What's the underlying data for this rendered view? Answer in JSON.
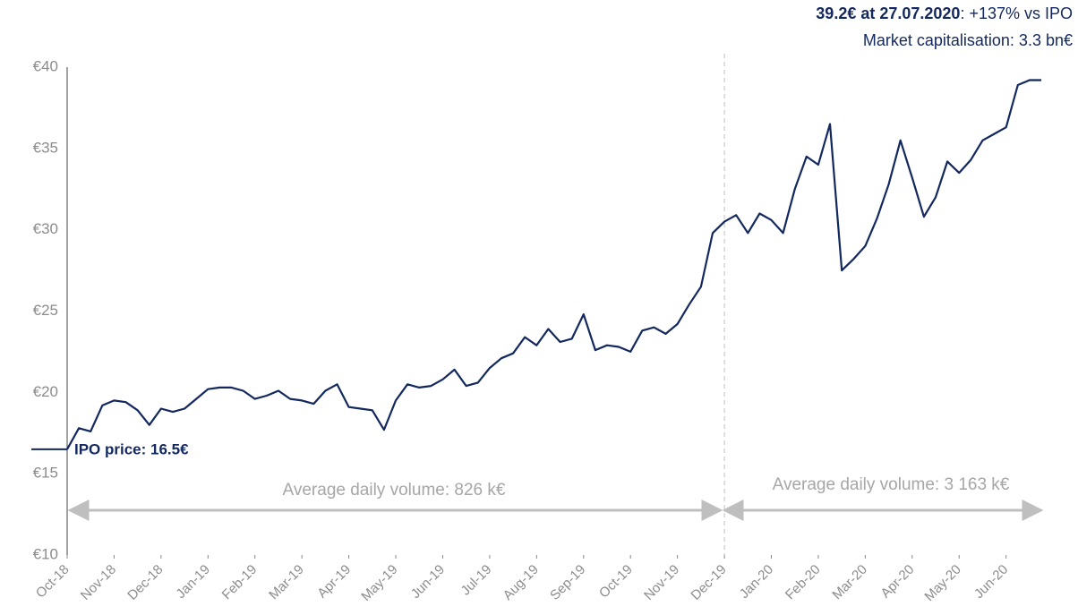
{
  "chart_data": {
    "type": "line",
    "color": "#12285f",
    "price_note": {
      "highlight": "39.2€ at 27.07.2020",
      "detail": ": +137% vs IPO"
    },
    "market_cap_note": "Market capitalisation: 3.3 bn€",
    "ipo_label": "IPO price: 16.5€",
    "ipo_price": 16.5,
    "volume_notes": [
      "Average daily volume: 826 k€",
      "Average daily volume: 3 163 k€"
    ],
    "ylim": [
      10,
      40
    ],
    "yticks": [
      {
        "value": 10,
        "label": "€10"
      },
      {
        "value": 15,
        "label": "€15"
      },
      {
        "value": 20,
        "label": "€20"
      },
      {
        "value": 25,
        "label": "€25"
      },
      {
        "value": 30,
        "label": "€30"
      },
      {
        "value": 35,
        "label": "€35"
      },
      {
        "value": 40,
        "label": "€40"
      }
    ],
    "categories": [
      "Oct-18",
      null,
      null,
      null,
      "Nov-18",
      null,
      null,
      null,
      "Dec-18",
      null,
      null,
      null,
      "Jan-19",
      null,
      null,
      null,
      "Feb-19",
      null,
      null,
      null,
      "Mar-19",
      null,
      null,
      null,
      "Apr-19",
      null,
      null,
      null,
      "May-19",
      null,
      null,
      null,
      "Jun-19",
      null,
      null,
      null,
      "Jul-19",
      null,
      null,
      null,
      "Aug-19",
      null,
      null,
      null,
      "Sep-19",
      null,
      null,
      null,
      "Oct-19",
      null,
      null,
      null,
      "Nov-19",
      null,
      null,
      null,
      "Dec-19",
      null,
      null,
      null,
      "Jan-20",
      null,
      null,
      null,
      "Feb-20",
      null,
      null,
      null,
      "Mar-20",
      null,
      null,
      null,
      "Apr-20",
      null,
      null,
      null,
      "May-20",
      null,
      null,
      null,
      "Jun-20",
      null,
      null,
      null
    ],
    "values": [
      16.5,
      17.8,
      17.6,
      19.2,
      19.5,
      19.4,
      18.9,
      18.0,
      19.0,
      18.8,
      19.0,
      19.6,
      20.2,
      20.3,
      20.3,
      20.1,
      19.6,
      19.8,
      20.1,
      19.6,
      19.5,
      19.3,
      20.1,
      20.5,
      19.1,
      19.0,
      18.9,
      17.7,
      19.5,
      20.5,
      20.3,
      20.4,
      20.8,
      21.4,
      20.4,
      20.6,
      21.5,
      22.1,
      22.4,
      23.4,
      22.9,
      23.9,
      23.1,
      23.3,
      24.8,
      22.6,
      22.9,
      22.8,
      22.5,
      23.8,
      24.0,
      23.6,
      24.2,
      25.4,
      26.5,
      29.8,
      30.5,
      30.9,
      29.8,
      31.0,
      30.6,
      29.8,
      32.5,
      34.5,
      34.0,
      36.5,
      27.5,
      28.2,
      29.0,
      30.7,
      32.8,
      35.5,
      33.2,
      30.8,
      32.0,
      34.2,
      33.5,
      34.3,
      35.5,
      35.9,
      36.3,
      38.9,
      39.2,
      39.2
    ]
  }
}
